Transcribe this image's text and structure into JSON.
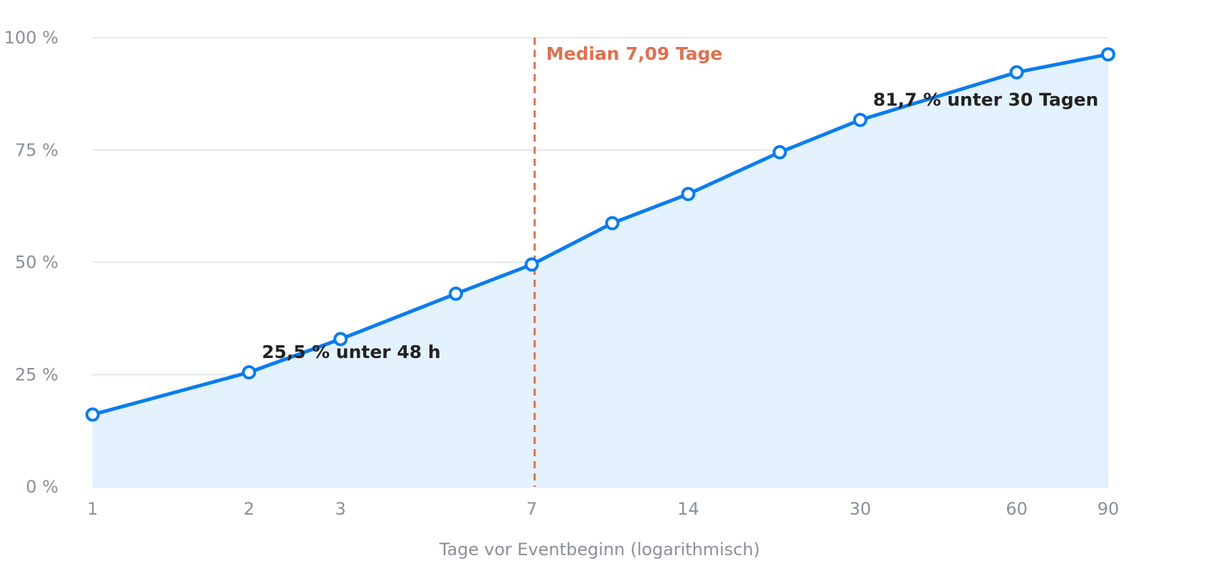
{
  "chart_data": {
    "type": "area",
    "xlabel": "Tage vor Eventbeginn (logarithmisch)",
    "ylabel": "",
    "x_scale": "log",
    "xlim": [
      1,
      90
    ],
    "ylim": [
      0,
      100
    ],
    "x_ticks": [
      {
        "value": 1,
        "label": "1"
      },
      {
        "value": 2,
        "label": "2"
      },
      {
        "value": 3,
        "label": "3"
      },
      {
        "value": 7,
        "label": "7"
      },
      {
        "value": 14,
        "label": "14"
      },
      {
        "value": 30,
        "label": "30"
      },
      {
        "value": 60,
        "label": "60"
      },
      {
        "value": 90,
        "label": "90"
      }
    ],
    "y_ticks": [
      {
        "value": 0,
        "label": "0 %"
      },
      {
        "value": 25,
        "label": "25 %"
      },
      {
        "value": 50,
        "label": "50 %"
      },
      {
        "value": 75,
        "label": "75 %"
      },
      {
        "value": 100,
        "label": "100 %"
      }
    ],
    "grid": "horizontal",
    "series": [
      {
        "x": [
          1,
          2,
          3,
          5,
          7,
          10,
          14,
          21,
          30,
          60,
          90
        ],
        "y": [
          16.1,
          25.5,
          32.9,
          43.0,
          49.5,
          58.7,
          65.2,
          74.5,
          81.7,
          92.3,
          96.3
        ]
      }
    ],
    "median": {
      "x": 7.09,
      "label": "Median 7,09 Tage"
    },
    "annotations": [
      {
        "x": 2,
        "y": 25.5,
        "text": "25,5 % unter 48 h"
      },
      {
        "x": 30,
        "y": 81.7,
        "text": "81,7 % unter 30 Tagen"
      }
    ],
    "colors": {
      "line": "#0a7cf0",
      "area": "#e4f1fe",
      "median": "#e07050",
      "grid": "#e3e8ee"
    }
  }
}
